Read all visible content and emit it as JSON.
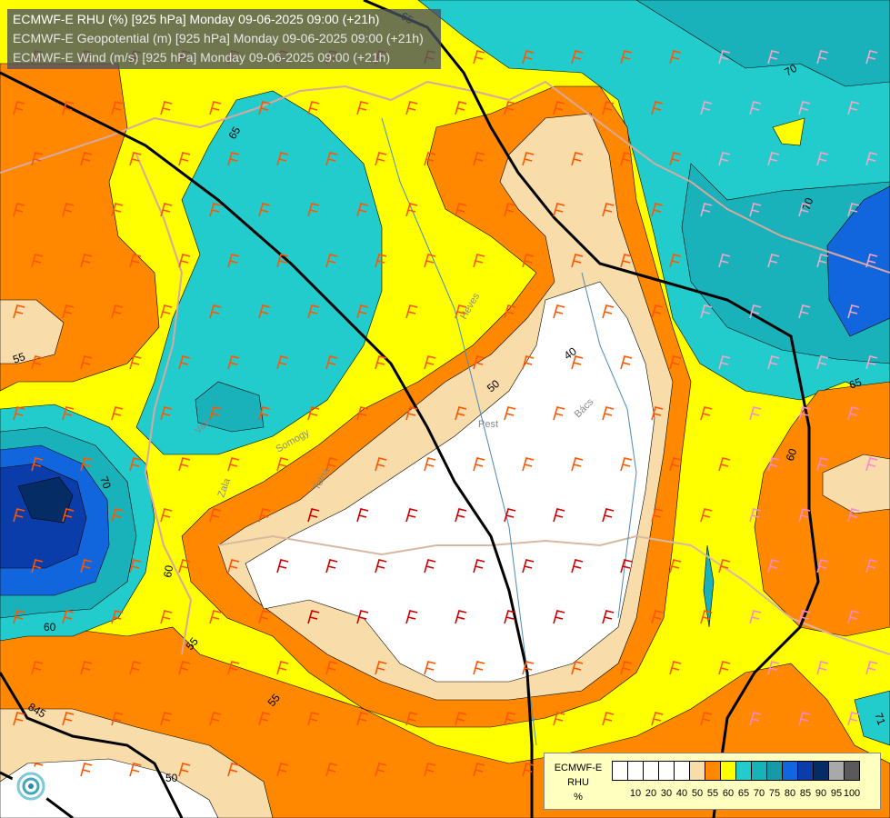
{
  "header": {
    "line1": "ECMWF-E RHU (%) [925 hPa] Monday 09-06-2025 09:00 (+21h)",
    "line2": "ECMWF-E Geopotential (m) [925 hPa] Monday 09-06-2025 09:00 (+21h)",
    "line3": "ECMWF-E Wind (m/s) [925 hPa] Monday 09-06-2025 09:00 (+21h)"
  },
  "legend": {
    "line1": "ECMWF-E",
    "line2": "RHU",
    "unit": "%",
    "colors": [
      "#ffffff",
      "#ffffff",
      "#ffffff",
      "#ffffff",
      "#ffffff",
      "#f8dcaa",
      "#ff8800",
      "#ffff00",
      "#22cccc",
      "#19b2bb",
      "#169aa8",
      "#1166dd",
      "#0a3caa",
      "#062c66",
      "#a9a9a9",
      "#5a5a5a"
    ],
    "ticks": [
      "10",
      "20",
      "30",
      "40",
      "50",
      "55",
      "60",
      "65",
      "70",
      "75",
      "80",
      "85",
      "90",
      "95",
      "100"
    ]
  },
  "contour_labels": [
    "65",
    "70",
    "70",
    "55",
    "55",
    "60",
    "60",
    "55",
    "50",
    "50",
    "40",
    "65",
    "60",
    "70",
    "71",
    "65",
    "845",
    "860"
  ],
  "place_labels": [
    "Heves",
    "Pest",
    "Bács",
    "Vas",
    "Zala",
    "Somogy",
    "Tolna"
  ]
}
